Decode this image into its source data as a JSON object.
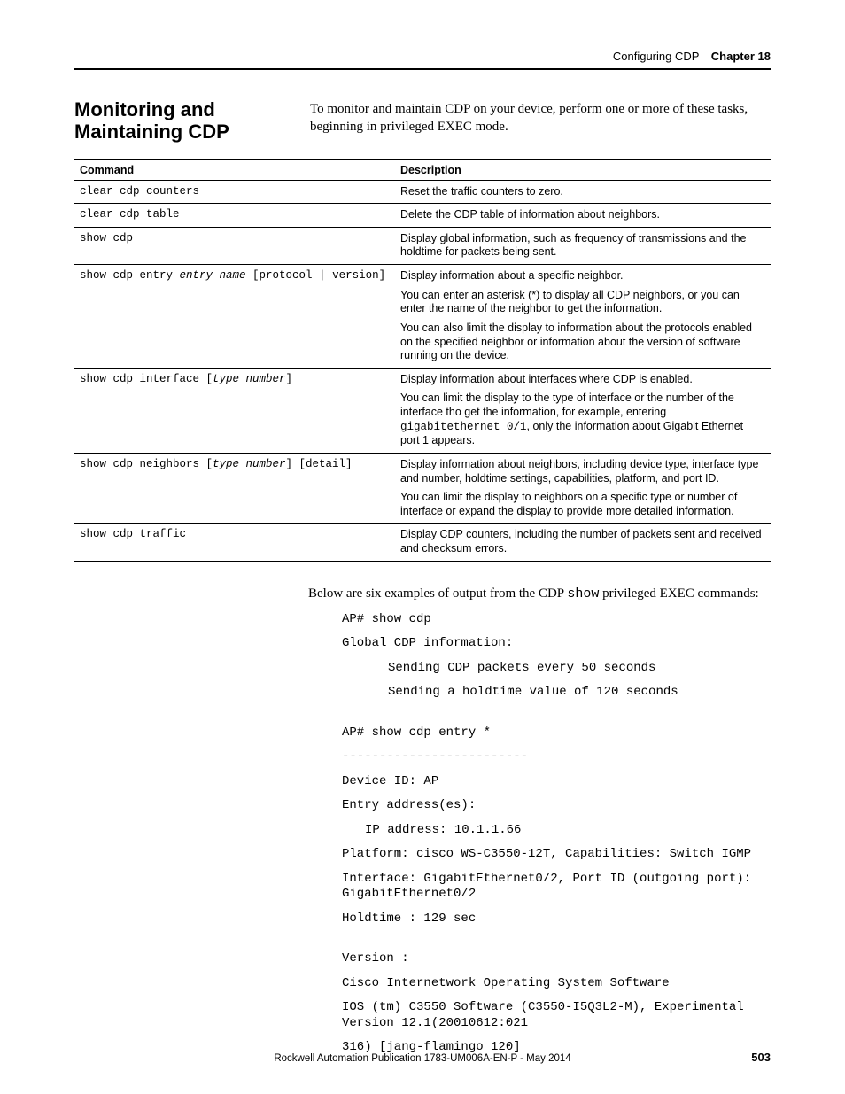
{
  "header": {
    "topic": "Configuring CDP",
    "chapter": "Chapter 18"
  },
  "section": {
    "title": "Monitoring and Maintaining CDP",
    "intro": "To monitor and maintain CDP on your device, perform one or more of these tasks, beginning in privileged EXEC mode."
  },
  "table": {
    "headers": {
      "cmd": "Command",
      "desc": "Description"
    },
    "rows": [
      {
        "cmd_plain": "clear cdp counters",
        "desc": [
          "Reset the traffic counters to zero."
        ]
      },
      {
        "cmd_plain": "clear cdp table",
        "desc": [
          "Delete the CDP table of information about neighbors."
        ]
      },
      {
        "cmd_plain": "show cdp",
        "desc": [
          "Display global information, such as frequency of transmissions and the holdtime for packets being sent."
        ]
      },
      {
        "cmd_pre": "show cdp entry ",
        "cmd_ital": "entry-name",
        "cmd_post": " [protocol | version]",
        "desc": [
          "Display information about a specific neighbor.",
          "You can enter an asterisk (*) to display all CDP neighbors, or you can enter the name of the neighbor to get the information.",
          "You can also limit the display to information about the protocols enabled on the specified neighbor or information about the version of software running on the device."
        ]
      },
      {
        "cmd_pre": "show cdp interface [",
        "cmd_ital": "type number",
        "cmd_post": "]",
        "desc_mixed": {
          "p1": "Display information about interfaces where CDP is enabled.",
          "p2a": "You can limit the display to the type of interface or the number of the interface tho get the information, for example, entering ",
          "p2code": "gigabitethernet 0/1",
          "p2b": ", only the information about Gigabit Ethernet port 1 appears."
        }
      },
      {
        "cmd_pre": "show cdp neighbors [",
        "cmd_ital": "type number",
        "cmd_post": "] [detail]",
        "desc": [
          "Display information about neighbors, including device type, interface type and number, holdtime settings, capabilities, platform, and port ID.",
          "You can limit the display to neighbors on a specific type or number of interface or expand the display to provide more detailed information."
        ]
      },
      {
        "cmd_plain": "show cdp traffic",
        "desc": [
          "Display CDP counters, including the number of packets sent and received and checksum errors."
        ]
      }
    ]
  },
  "after_para_a": "Below are six examples of output from the CDP ",
  "after_para_code": "show",
  "after_para_b": " privileged EXEC commands:",
  "output": {
    "l1": "AP# show cdp",
    "l2": "Global CDP information:",
    "l3": "Sending CDP packets every 50 seconds",
    "l4": "Sending a holdtime value of 120 seconds",
    "l5": "AP# show cdp entry *",
    "l6": "-------------------------",
    "l7": "Device ID: AP",
    "l8": "Entry address(es):",
    "l9": "IP address: 10.1.1.66",
    "l10": "Platform: cisco WS-C3550-12T,  Capabilities: Switch IGMP",
    "l11": "Interface: GigabitEthernet0/2,  Port ID (outgoing port): GigabitEthernet0/2",
    "l12": "Holdtime : 129 sec",
    "l13": "Version :",
    "l14": "Cisco Internetwork Operating System Software",
    "l15": "IOS (tm) C3550 Software (C3550-I5Q3L2-M), Experimental Version 12.1(20010612:021",
    "l16": "316) [jang-flamingo 120]"
  },
  "footer": {
    "pub": "Rockwell Automation Publication 1783-UM006A-EN-P - May 2014",
    "page": "503"
  },
  "colors": {
    "text": "#000000",
    "background": "#ffffff",
    "rule": "#000000"
  },
  "fonts": {
    "body_serif": "Georgia / Times",
    "ui_sans": "Arial / Helvetica",
    "mono": "Courier New",
    "section_title_pt": 22,
    "body_pt": 15,
    "table_pt": 12.5,
    "mono_block_pt": 14,
    "footer_pt": 11.5
  }
}
